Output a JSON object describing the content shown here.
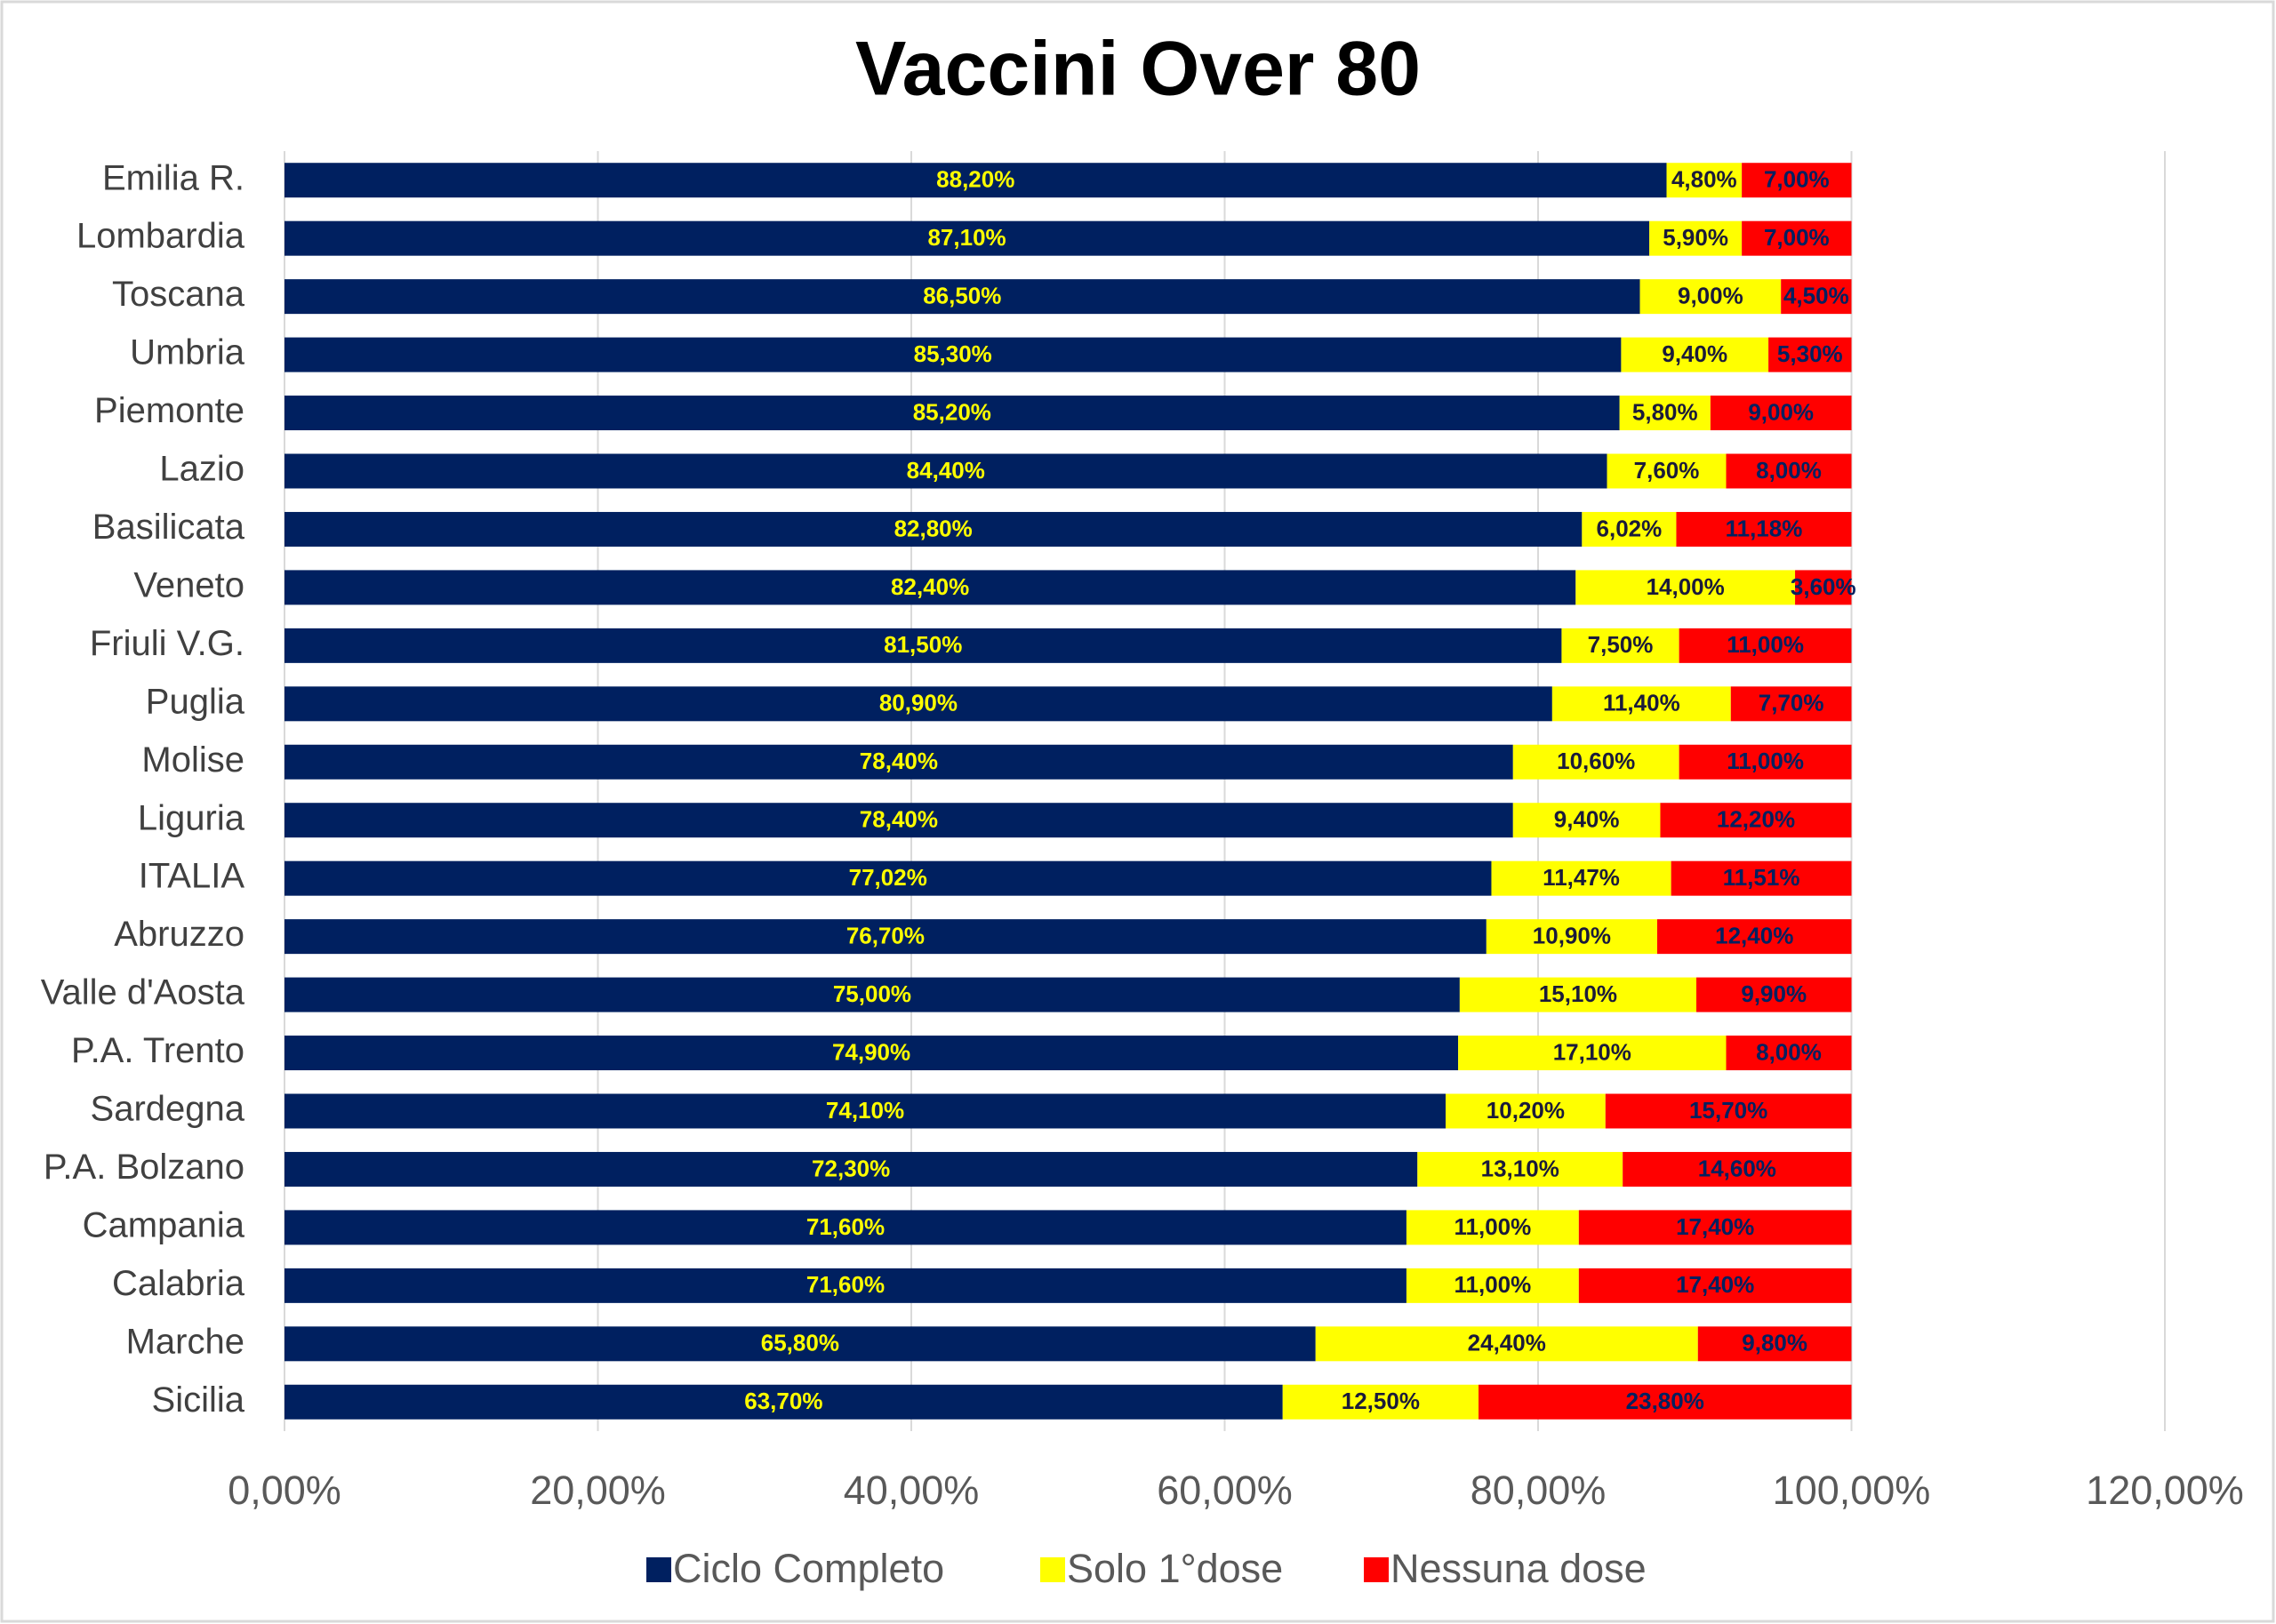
{
  "chart_data": {
    "type": "stacked_bar_horizontal",
    "title": "Vaccini Over 80",
    "categories": [
      "Emilia R.",
      "Lombardia",
      "Toscana",
      "Umbria",
      "Piemonte",
      "Lazio",
      "Basilicata",
      "Veneto",
      "Friuli V.G.",
      "Puglia",
      "Molise",
      "Liguria",
      "ITALIA",
      "Abruzzo",
      "Valle d'Aosta",
      "P.A. Trento",
      "Sardegna",
      "P.A. Bolzano",
      "Campania",
      "Calabria",
      "Marche",
      "Sicilia"
    ],
    "series": [
      {
        "name": "Ciclo Completo",
        "color": "#002060",
        "values": [
          88.2,
          87.1,
          86.5,
          85.3,
          85.2,
          84.4,
          82.8,
          82.4,
          81.5,
          80.9,
          78.4,
          78.4,
          77.02,
          76.7,
          75.0,
          74.9,
          74.1,
          72.3,
          71.6,
          71.6,
          65.8,
          63.7
        ],
        "value_labels": [
          "88,20%",
          "87,10%",
          "86,50%",
          "85,30%",
          "85,20%",
          "84,40%",
          "82,80%",
          "82,40%",
          "81,50%",
          "80,90%",
          "78,40%",
          "78,40%",
          "77,02%",
          "76,70%",
          "75,00%",
          "74,90%",
          "74,10%",
          "72,30%",
          "71,60%",
          "71,60%",
          "65,80%",
          "63,70%"
        ]
      },
      {
        "name": "Solo 1°dose",
        "color": "#ffff00",
        "values": [
          4.8,
          5.9,
          9.0,
          9.4,
          5.8,
          7.6,
          6.02,
          14.0,
          7.5,
          11.4,
          10.6,
          9.4,
          11.47,
          10.9,
          15.1,
          17.1,
          10.2,
          13.1,
          11.0,
          11.0,
          24.4,
          12.5
        ],
        "value_labels": [
          "4,80%",
          "5,90%",
          "9,00%",
          "9,40%",
          "5,80%",
          "7,60%",
          "6,02%",
          "14,00%",
          "7,50%",
          "11,40%",
          "10,60%",
          "9,40%",
          "11,47%",
          "10,90%",
          "15,10%",
          "17,10%",
          "10,20%",
          "13,10%",
          "11,00%",
          "11,00%",
          "24,40%",
          "12,50%"
        ]
      },
      {
        "name": "Nessuna dose",
        "color": "#ff0000",
        "values": [
          7.0,
          7.0,
          4.5,
          5.3,
          9.0,
          8.0,
          11.18,
          3.6,
          11.0,
          7.7,
          11.0,
          12.2,
          11.51,
          12.4,
          9.9,
          8.0,
          15.7,
          14.6,
          17.4,
          17.4,
          9.8,
          23.8
        ],
        "value_labels": [
          "7,00%",
          "7,00%",
          "4,50%",
          "5,30%",
          "9,00%",
          "8,00%",
          "11,18%",
          "3,60%",
          "11,00%",
          "7,70%",
          "11,00%",
          "12,20%",
          "11,51%",
          "12,40%",
          "9,90%",
          "8,00%",
          "15,70%",
          "14,60%",
          "17,40%",
          "17,40%",
          "9,80%",
          "23,80%"
        ]
      }
    ],
    "xlim": [
      0,
      120
    ],
    "xticks": [
      {
        "value": 0,
        "label": "0,00%"
      },
      {
        "value": 20,
        "label": "20,00%"
      },
      {
        "value": 40,
        "label": "40,00%"
      },
      {
        "value": 60,
        "label": "60,00%"
      },
      {
        "value": 80,
        "label": "80,00%"
      },
      {
        "value": 100,
        "label": "100,00%"
      },
      {
        "value": 120,
        "label": "120,00%"
      }
    ],
    "grid": true,
    "legend": "bottom"
  }
}
